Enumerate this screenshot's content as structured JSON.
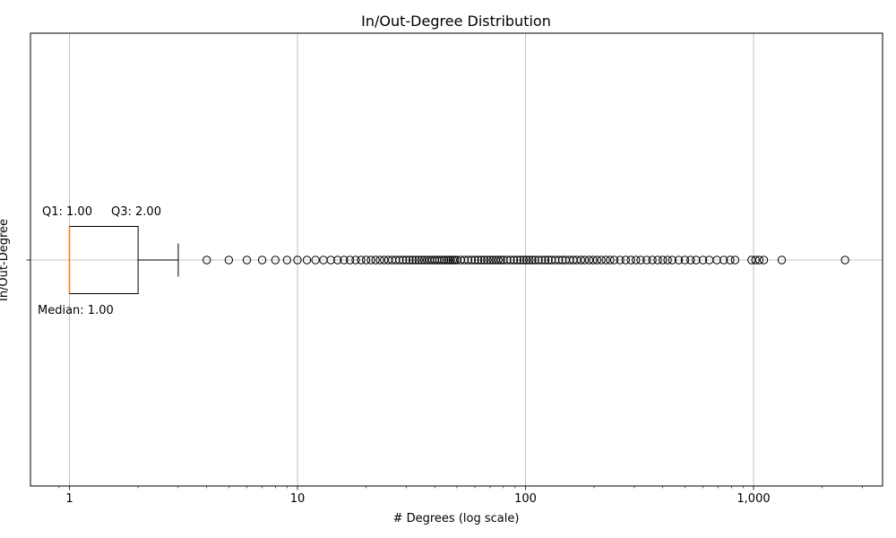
{
  "chart_data": {
    "type": "boxplot",
    "orientation": "horizontal",
    "title": "In/Out-Degree Distribution",
    "xlabel": "# Degrees (log scale)",
    "ylabel": "In/Out-Degree",
    "x_scale": "log",
    "xlim": [
      0.85,
      3800
    ],
    "x_ticks": [
      1,
      10,
      100,
      1000
    ],
    "x_tick_labels": [
      "1",
      "10",
      "100",
      "1,000"
    ],
    "grid": true,
    "box": {
      "q1": 1,
      "median": 1,
      "q3": 2,
      "whisker_low": 1,
      "whisker_high": 3
    },
    "annotations": {
      "q1": "Q1: 1.00",
      "q3": "Q3: 2.00",
      "median": "Median: 1.00"
    },
    "outliers": [
      4,
      5,
      6,
      7,
      8,
      9,
      10,
      11,
      12,
      13,
      14,
      15,
      16,
      17,
      18,
      19,
      20,
      21,
      22,
      23,
      24,
      25,
      26,
      27,
      28,
      29,
      30,
      31,
      32,
      33,
      34,
      35,
      36,
      37,
      38,
      39,
      40,
      41,
      42,
      43,
      44,
      45,
      46,
      47,
      48,
      49,
      50,
      52,
      54,
      56,
      58,
      60,
      62,
      64,
      66,
      68,
      70,
      72,
      74,
      76,
      78,
      80,
      83,
      86,
      89,
      92,
      95,
      98,
      101,
      104,
      107,
      110,
      114,
      118,
      122,
      126,
      130,
      135,
      140,
      145,
      150,
      156,
      162,
      168,
      175,
      182,
      190,
      198,
      206,
      215,
      225,
      235,
      245,
      260,
      275,
      290,
      305,
      320,
      340,
      360,
      380,
      400,
      420,
      440,
      470,
      500,
      530,
      560,
      600,
      640,
      690,
      740,
      790,
      830,
      980,
      1020,
      1060,
      1110,
      1330,
      2520
    ],
    "colors": {
      "median": "#ff7f0e",
      "box": "#000000",
      "grid": "#b0b0b0"
    }
  }
}
